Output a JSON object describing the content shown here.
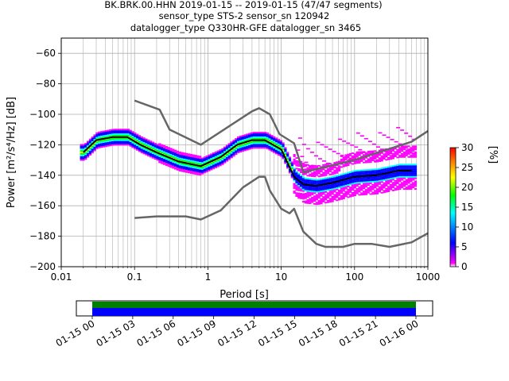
{
  "chart_data": {
    "type": "heatmap",
    "title": {
      "line1": "BK.BRK.00.HHN   2019-01-15 -- 2019-01-15  (47/47 segments)",
      "line2": "sensor_type STS-2 sensor_sn 120942",
      "line3": "datalogger_type Q330HR-GFE datalogger_sn 3465"
    },
    "xlabel": "Period [s]",
    "ylabel": "Power [m²/s⁴/Hz] [dB]",
    "x_scale": "log",
    "xlim": [
      0.01,
      1000
    ],
    "ylim": [
      -200,
      -50
    ],
    "x_ticks": [
      {
        "value": 0.01,
        "label": "0.01"
      },
      {
        "value": 0.1,
        "label": "0.1"
      },
      {
        "value": 1,
        "label": "1"
      },
      {
        "value": 10,
        "label": "10"
      },
      {
        "value": 100,
        "label": "100"
      },
      {
        "value": 1000,
        "label": "1000"
      }
    ],
    "y_ticks": [
      -60,
      -80,
      -100,
      -120,
      -140,
      -160,
      -180,
      -200
    ],
    "grid": true,
    "colorbar": {
      "label": "[%]",
      "min": 0,
      "max": 30,
      "ticks": [
        0,
        5,
        10,
        15,
        20,
        25,
        30
      ],
      "colors": [
        "#ffffff",
        "#ff00ff",
        "#0000ff",
        "#00ffff",
        "#00ff00",
        "#ffff00",
        "#ff8000",
        "#ff0000"
      ]
    },
    "series": [
      {
        "name": "",
        "color": "#000000",
        "points": [
          [
            0.02,
            -125
          ],
          [
            0.03,
            -117
          ],
          [
            0.05,
            -115
          ],
          [
            0.08,
            -115
          ],
          [
            0.12,
            -120
          ],
          [
            0.2,
            -125
          ],
          [
            0.4,
            -131
          ],
          [
            0.8,
            -134
          ],
          [
            1.5,
            -128
          ],
          [
            2.5,
            -120
          ],
          [
            4,
            -117
          ],
          [
            6,
            -117
          ],
          [
            10,
            -123
          ],
          [
            15,
            -141
          ],
          [
            20,
            -146
          ],
          [
            30,
            -147
          ],
          [
            50,
            -145
          ],
          [
            100,
            -141
          ],
          [
            200,
            -140
          ],
          [
            400,
            -137
          ],
          [
            600,
            -137
          ]
        ]
      },
      {
        "name": "",
        "color": "#666666",
        "points": [
          [
            0.1,
            -91
          ],
          [
            0.22,
            -97
          ],
          [
            0.3,
            -110
          ],
          [
            0.8,
            -120
          ],
          [
            4,
            -98
          ],
          [
            5,
            -96
          ],
          [
            7,
            -100
          ],
          [
            9.5,
            -113
          ],
          [
            15,
            -119
          ],
          [
            20,
            -138
          ],
          [
            100,
            -130
          ],
          [
            600,
            -118
          ],
          [
            1000,
            -111
          ]
        ]
      },
      {
        "name": "",
        "color": "#666666",
        "points": [
          [
            0.1,
            -168
          ],
          [
            0.2,
            -167
          ],
          [
            0.5,
            -167
          ],
          [
            0.8,
            -169
          ],
          [
            1.5,
            -163
          ],
          [
            3,
            -148
          ],
          [
            5,
            -141
          ],
          [
            6,
            -141
          ],
          [
            7,
            -150
          ],
          [
            10,
            -162
          ],
          [
            13,
            -165
          ],
          [
            15,
            -162
          ],
          [
            20,
            -177
          ],
          [
            30,
            -185
          ],
          [
            40,
            -187
          ],
          [
            70,
            -187
          ],
          [
            100,
            -185
          ],
          [
            170,
            -185
          ],
          [
            300,
            -187
          ],
          [
            600,
            -184
          ],
          [
            1000,
            -178
          ]
        ]
      }
    ],
    "time_axis": {
      "tick_labels": [
        "01-15 00",
        "01-15 03",
        "01-15 06",
        "01-15 09",
        "01-15 12",
        "01-15 15",
        "01-15 18",
        "01-15 21",
        "01-16 00"
      ],
      "coverage": [
        {
          "start": "01-15 00",
          "end": "01-16 00",
          "color": "#008000"
        },
        {
          "start": "01-15 00",
          "end": "01-16 00",
          "color": "#0000ff"
        }
      ]
    }
  }
}
